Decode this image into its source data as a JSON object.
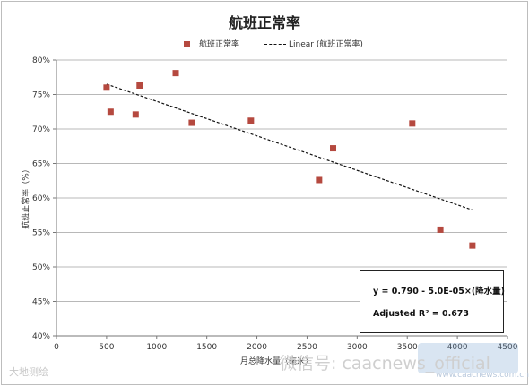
{
  "chart_data": {
    "type": "scatter",
    "title": "航班正常率",
    "xlabel": "月总降水量（毫米）",
    "ylabel": "航班正常率（%）",
    "xlim": [
      0,
      4500
    ],
    "ylim": [
      0.4,
      0.8
    ],
    "x_ticks": [
      0,
      500,
      1000,
      1500,
      2000,
      2500,
      3000,
      3500,
      4000,
      4500
    ],
    "x_tick_labels": [
      "0",
      "500",
      "1000",
      "1500",
      "2000",
      "2500",
      "3000",
      "3500",
      "4000",
      "4500"
    ],
    "y_ticks": [
      0.4,
      0.45,
      0.5,
      0.55,
      0.6,
      0.65,
      0.7,
      0.75,
      0.8
    ],
    "y_tick_labels": [
      "40%",
      "45%",
      "50%",
      "55%",
      "60%",
      "65%",
      "70%",
      "75%",
      "80%"
    ],
    "grid": "horizontal",
    "legend_position": "top",
    "series": [
      {
        "name": "航班正常率",
        "marker": "square",
        "color": "#b5493f",
        "x": [
          500,
          540,
          790,
          830,
          1190,
          1350,
          1940,
          2620,
          2760,
          3550,
          3830,
          4150
        ],
        "y": [
          0.76,
          0.725,
          0.721,
          0.763,
          0.781,
          0.709,
          0.712,
          0.626,
          0.672,
          0.708,
          0.554,
          0.531
        ]
      }
    ],
    "trendline": {
      "name": "Linear (航班正常率)",
      "style": "dashed",
      "color": "#111111",
      "x_range": [
        500,
        4150
      ],
      "intercept": 0.79,
      "slope": -5e-05
    },
    "annotation": {
      "equation": "y = 0.790 - 5.0E-05×(降水量)",
      "r_squared": "Adjusted R² = 0.673"
    }
  },
  "legend": {
    "scatter_label": "航班正常率",
    "trend_label": "Linear (航班正常率)"
  },
  "watermarks": {
    "left": "大地测绘",
    "right": "微信号: caacnews_official",
    "url": "www.caacnews.com.cn"
  }
}
